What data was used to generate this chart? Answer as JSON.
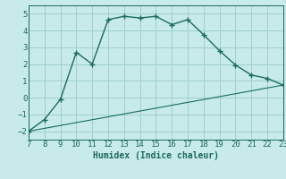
{
  "xlabel": "Humidex (Indice chaleur)",
  "background_color": "#c8eae8",
  "line_color": "#1a6b5e",
  "grid_color": "#a0d0cc",
  "xlim": [
    7,
    23
  ],
  "ylim": [
    -2.5,
    5.5
  ],
  "xticks": [
    7,
    8,
    9,
    10,
    11,
    12,
    13,
    14,
    15,
    16,
    17,
    18,
    19,
    20,
    21,
    22,
    23
  ],
  "yticks": [
    -2,
    -1,
    0,
    1,
    2,
    3,
    4,
    5
  ],
  "line1_x": [
    7,
    8,
    9,
    10,
    11,
    12,
    13,
    14,
    15,
    16,
    17,
    18,
    19,
    20,
    21,
    22,
    23
  ],
  "line1_y": [
    -2.0,
    -1.3,
    -0.1,
    2.7,
    2.0,
    4.65,
    4.85,
    4.75,
    4.85,
    4.35,
    4.65,
    3.75,
    2.8,
    1.95,
    1.35,
    1.15,
    0.75
  ],
  "line2_x": [
    7,
    23
  ],
  "line2_y": [
    -2.0,
    0.75
  ],
  "xlabel_fontsize": 7,
  "tick_fontsize": 6.5
}
